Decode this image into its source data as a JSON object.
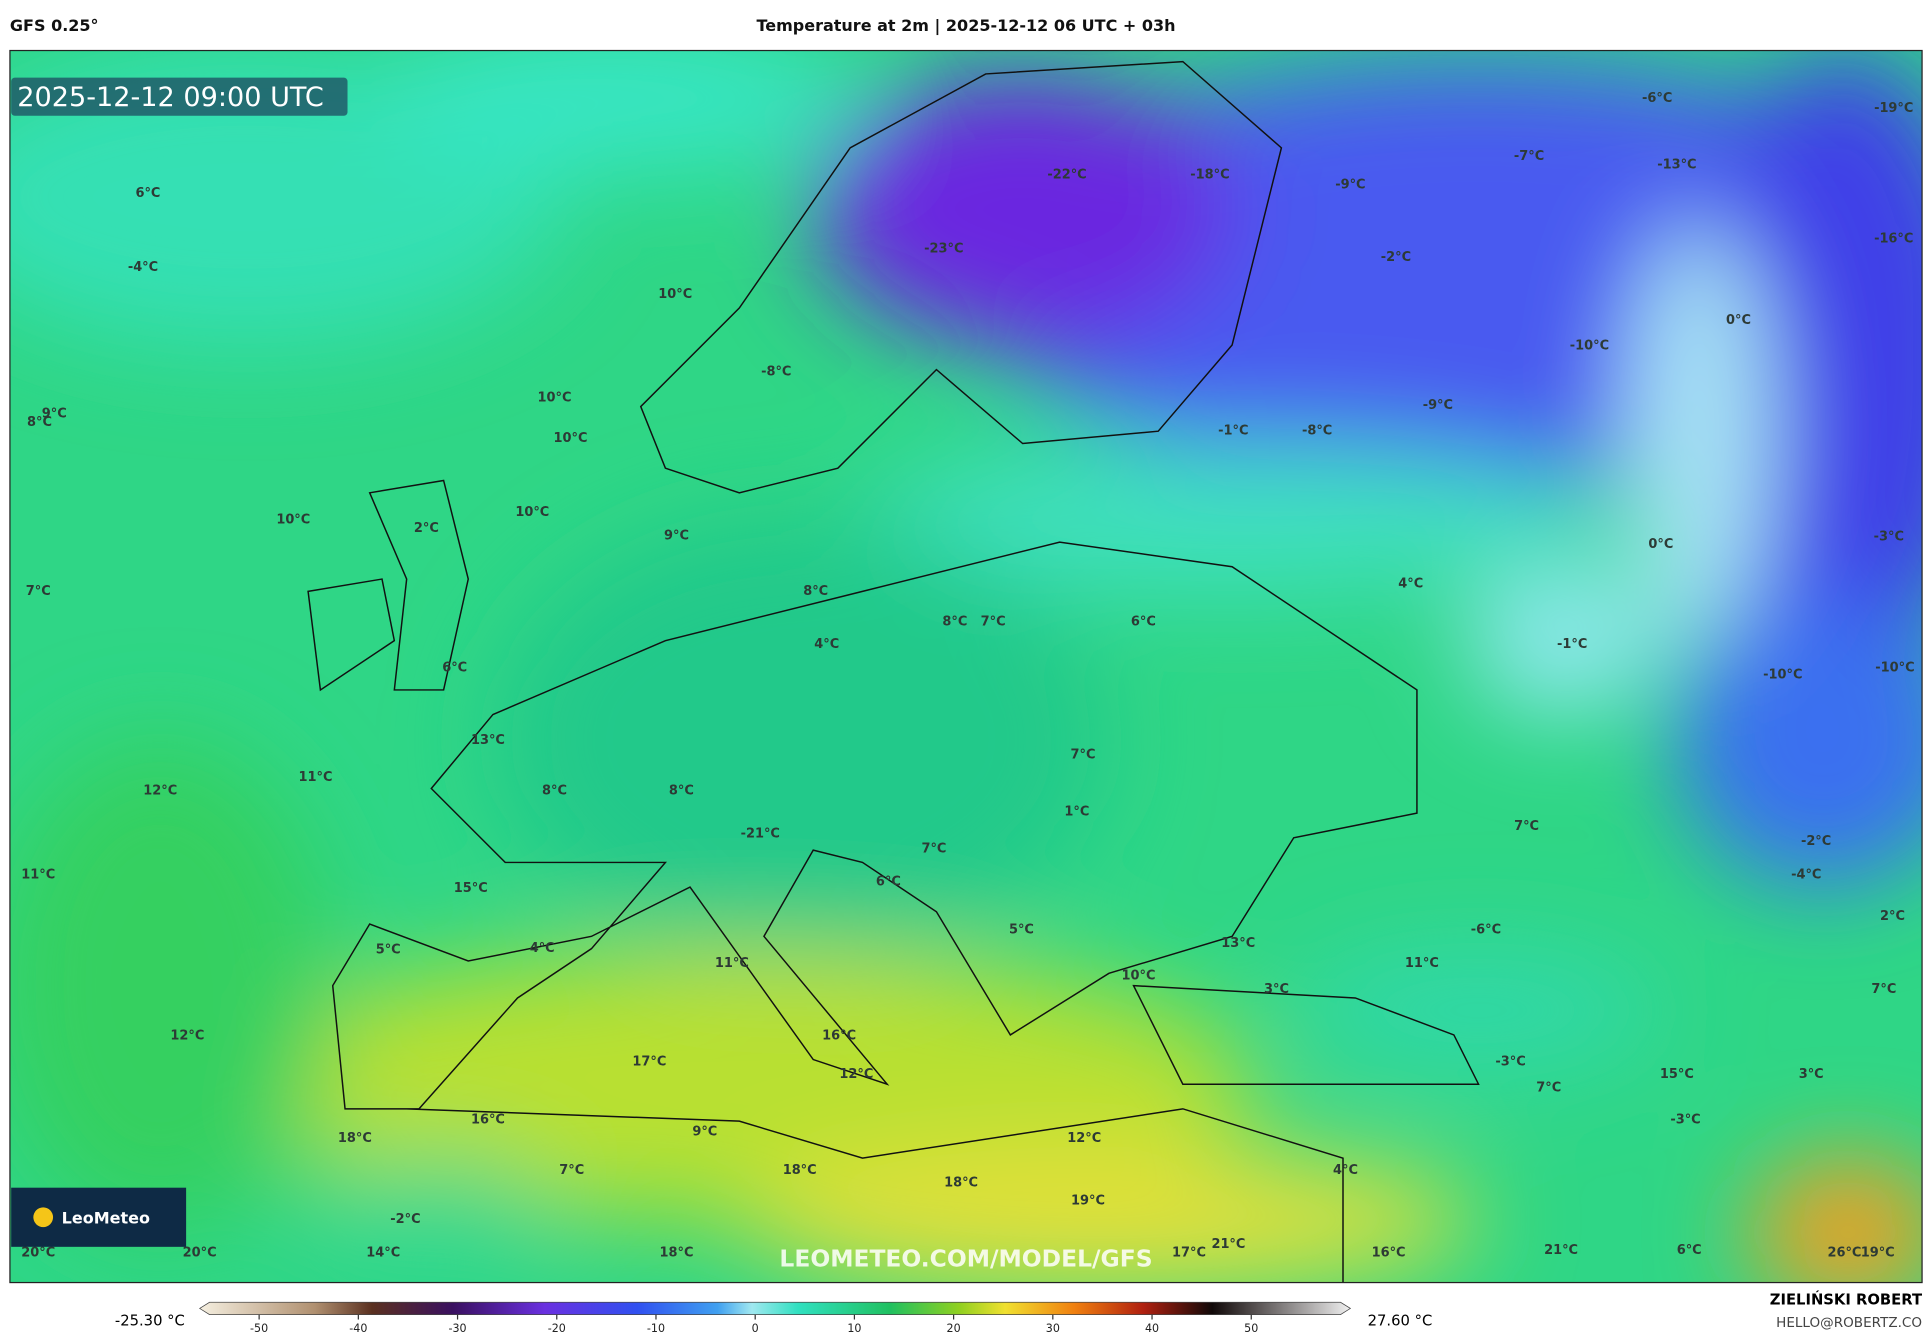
{
  "header": {
    "model": "GFS 0.25°",
    "title": "Temperature at 2m | 2025-12-12 06 UTC + 03h"
  },
  "map": {
    "timestamp": "2025-12-12 09:00 UTC",
    "logo": "LeoMeteo",
    "watermark": "LEOMETEO.COM/MODEL/GFS",
    "labels": [
      "6°C",
      "-4°C",
      "10°C",
      "-8°C",
      "10°C",
      "10°C",
      "8°C",
      "9°C",
      "10°C",
      "10°C",
      "2°C",
      "9°C",
      "7°C",
      "-22°C",
      "-18°C",
      "-9°C",
      "-23°C",
      "-2°C",
      "-6°C",
      "-7°C",
      "-13°C",
      "-19°C",
      "-16°C",
      "0°C",
      "-10°C",
      "-9°C",
      "-1°C",
      "-8°C",
      "0°C",
      "-3°C",
      "4°C",
      "8°C",
      "8°C",
      "7°C",
      "6°C",
      "4°C",
      "6°C",
      "-1°C",
      "-10°C",
      "-10°C",
      "13°C",
      "7°C",
      "11°C",
      "12°C",
      "8°C",
      "8°C",
      "1°C",
      "7°C",
      "-2°C",
      "-21°C",
      "7°C",
      "-4°C",
      "11°C",
      "15°C",
      "6°C",
      "2°C",
      "5°C",
      "4°C",
      "5°C",
      "-6°C",
      "13°C",
      "11°C",
      "11°C",
      "10°C",
      "3°C",
      "7°C",
      "12°C",
      "16°C",
      "17°C",
      "-3°C",
      "12°C",
      "15°C",
      "3°C",
      "7°C",
      "16°C",
      "-3°C",
      "9°C",
      "18°C",
      "12°C",
      "7°C",
      "4°C",
      "18°C",
      "18°C",
      "19°C",
      "-2°C",
      "20°C",
      "20°C",
      "14°C",
      "18°C",
      "17°C",
      "21°C",
      "16°C",
      "21°C",
      "6°C",
      "26°C",
      "19°C"
    ]
  },
  "colorbar": {
    "min_label": "-25.30 °C",
    "max_label": "27.60 °C",
    "range": [
      -55,
      59
    ],
    "ticks": [
      -50,
      -40,
      -30,
      -20,
      -10,
      0,
      10,
      20,
      30,
      40,
      50
    ]
  },
  "footer": {
    "author": "ZIELIŃSKI ROBERT",
    "email": "HELLO@ROBERTZ.CO"
  }
}
